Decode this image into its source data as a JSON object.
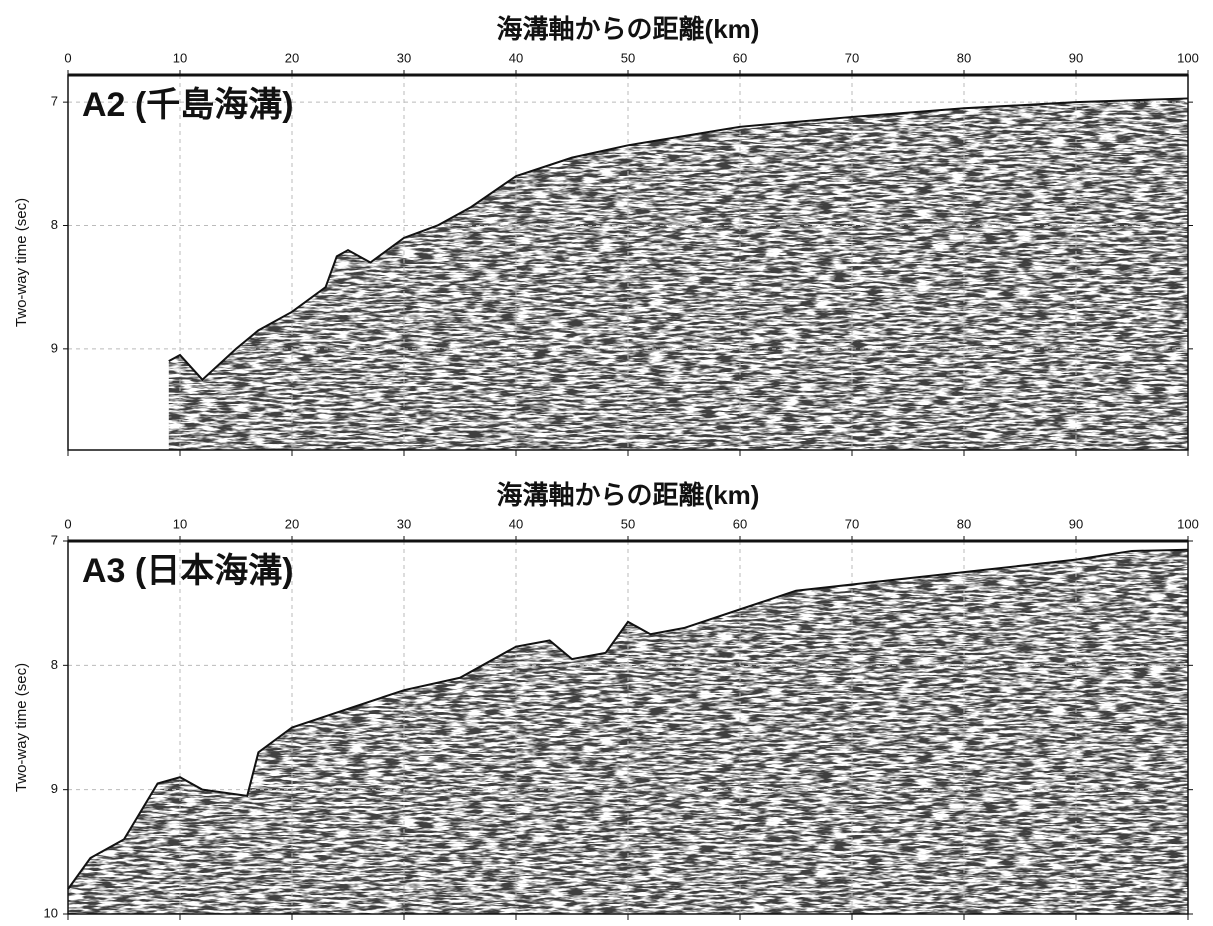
{
  "chart_data": [
    {
      "type": "line",
      "title": "海溝軸からの距離(km)",
      "ylabel": "Two-way time (sec)",
      "annotation": "A2 (千島海溝)",
      "x": [
        9,
        10,
        12,
        15,
        17,
        20,
        23,
        24,
        25,
        27,
        30,
        33,
        36,
        40,
        45,
        50,
        60,
        70,
        80,
        90,
        100
      ],
      "values": [
        9.1,
        9.05,
        9.25,
        9.0,
        8.85,
        8.7,
        8.5,
        8.25,
        8.2,
        8.3,
        8.1,
        8.0,
        7.85,
        7.6,
        7.45,
        7.35,
        7.2,
        7.12,
        7.05,
        7.0,
        6.97
      ],
      "color": "#111111",
      "xlim": [
        0,
        100
      ],
      "xticks": [
        0,
        10,
        20,
        30,
        40,
        50,
        60,
        70,
        80,
        90,
        100
      ],
      "ylim": [
        6.78,
        9.82
      ],
      "yticks": [
        7,
        8,
        9
      ],
      "grid": true
    },
    {
      "type": "line",
      "title": "海溝軸からの距離(km)",
      "ylabel": "Two-way time (sec)",
      "annotation": "A3 (日本海溝)",
      "x": [
        0,
        2,
        5,
        8,
        10,
        12,
        16,
        17,
        20,
        25,
        30,
        35,
        40,
        43,
        45,
        48,
        50,
        52,
        55,
        60,
        65,
        70,
        80,
        90,
        95,
        100
      ],
      "values": [
        9.8,
        9.55,
        9.4,
        8.95,
        8.9,
        9.0,
        9.05,
        8.7,
        8.5,
        8.35,
        8.2,
        8.1,
        7.85,
        7.8,
        7.95,
        7.9,
        7.65,
        7.75,
        7.7,
        7.55,
        7.4,
        7.35,
        7.25,
        7.15,
        7.08,
        7.07
      ],
      "color": "#111111",
      "xlim": [
        0,
        100
      ],
      "xticks": [
        0,
        10,
        20,
        30,
        40,
        50,
        60,
        70,
        80,
        90,
        100
      ],
      "ylim": [
        7,
        10
      ],
      "yticks": [
        7,
        8,
        9,
        10
      ],
      "grid": true
    }
  ]
}
